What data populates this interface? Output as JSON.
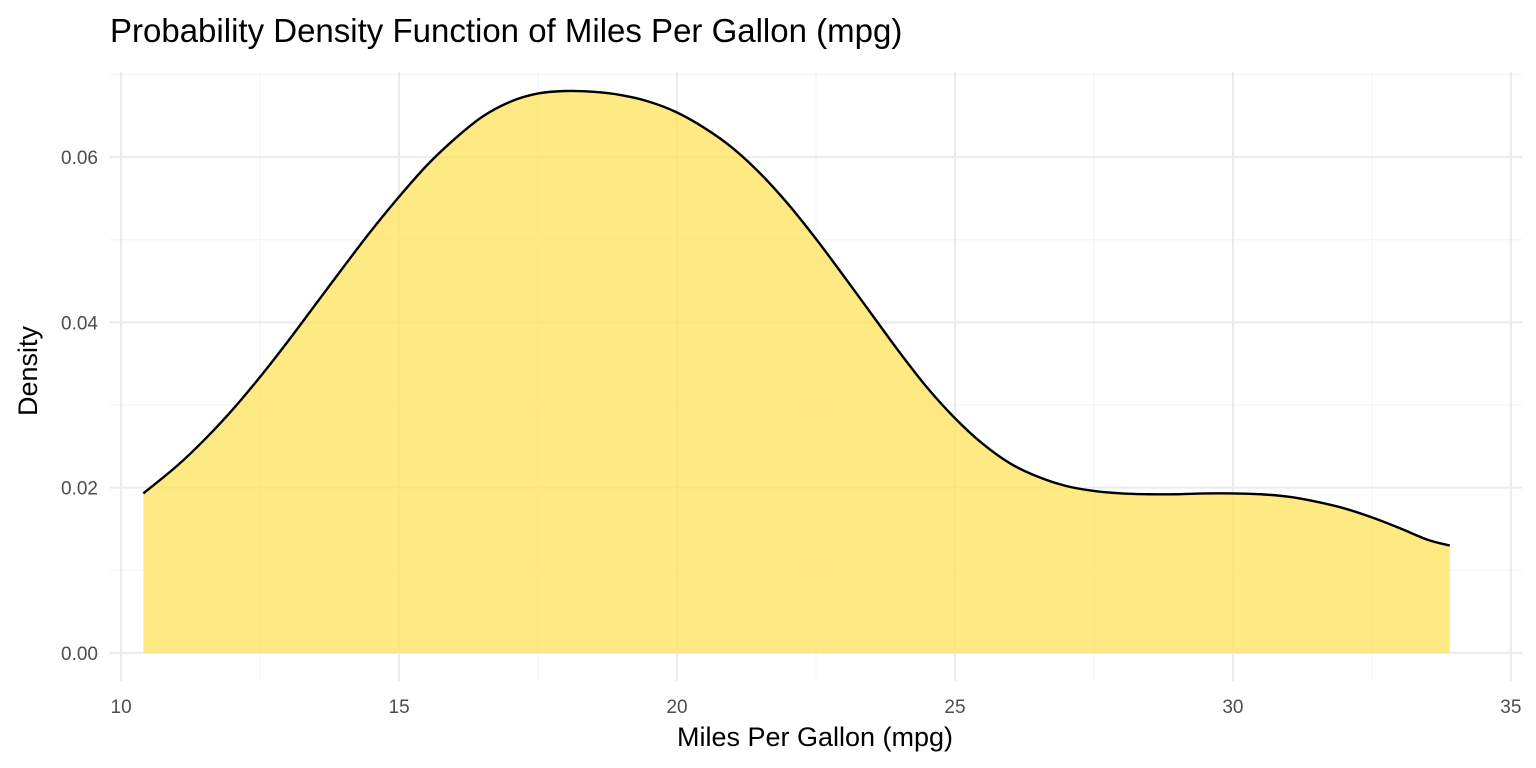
{
  "chart_data": {
    "type": "area",
    "title": "Probability Density Function of Miles Per Gallon (mpg)",
    "xlabel": "Miles Per Gallon (mpg)",
    "ylabel": "Density",
    "xlim": [
      9.8,
      35.2
    ],
    "ylim": [
      -0.0034,
      0.0703
    ],
    "x_ticks": [
      10,
      15,
      20,
      25,
      30,
      35
    ],
    "x_tick_labels": [
      "10",
      "15",
      "20",
      "25",
      "30",
      "35"
    ],
    "y_ticks": [
      0,
      0.02,
      0.04,
      0.06
    ],
    "y_tick_labels": [
      "0.00",
      "0.02",
      "0.04",
      "0.06"
    ],
    "grid": true,
    "legend": "none",
    "fill_color": "#FDE15A",
    "fill_opacity": 0.75,
    "line_color": "#000000",
    "x": [
      10.4,
      11,
      11.5,
      12,
      12.5,
      13,
      13.5,
      14,
      14.5,
      15,
      15.5,
      16,
      16.5,
      17,
      17.5,
      18,
      18.5,
      19,
      19.5,
      20,
      20.5,
      21,
      21.5,
      22,
      22.5,
      23,
      23.5,
      24,
      24.5,
      25,
      25.5,
      26,
      26.5,
      27,
      27.5,
      28,
      28.5,
      29,
      29.5,
      30,
      30.5,
      31,
      31.5,
      32,
      32.5,
      33,
      33.5,
      33.9
    ],
    "y": [
      0.0193,
      0.0226,
      0.0258,
      0.0294,
      0.0334,
      0.0377,
      0.0422,
      0.0467,
      0.0511,
      0.0552,
      0.059,
      0.0622,
      0.0649,
      0.0667,
      0.0677,
      0.068,
      0.0679,
      0.0675,
      0.0667,
      0.0654,
      0.0635,
      0.0611,
      0.058,
      0.0543,
      0.0501,
      0.0456,
      0.041,
      0.0364,
      0.0321,
      0.0284,
      0.0253,
      0.0229,
      0.0213,
      0.0202,
      0.0196,
      0.0193,
      0.0192,
      0.0192,
      0.0193,
      0.0193,
      0.0192,
      0.0189,
      0.0183,
      0.0175,
      0.0164,
      0.0151,
      0.0137,
      0.013
    ]
  }
}
